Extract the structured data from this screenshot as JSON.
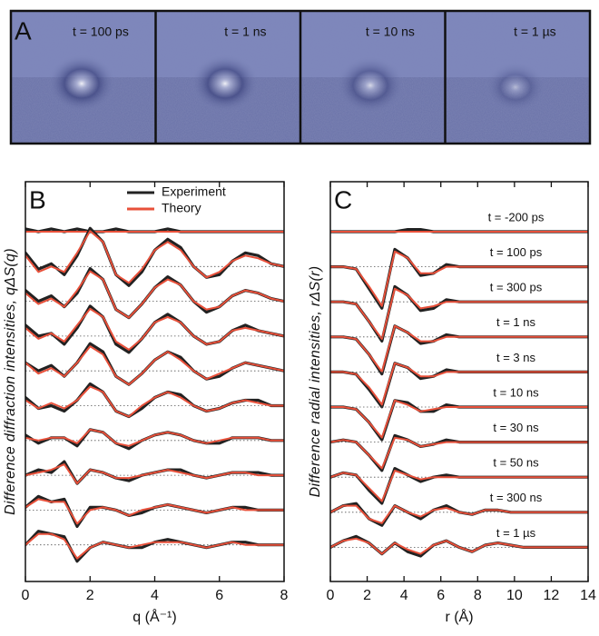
{
  "panel_a": {
    "label": "A",
    "times": [
      "t = 100 ps",
      "t = 1 ns",
      "t = 10 ns",
      "t = 1 µs"
    ]
  },
  "chart_data": [
    {
      "type": "line",
      "panel": "B",
      "xlabel": "q (Å⁻¹)",
      "ylabel": "Difference diffraction intensities, qΔS(q)",
      "xlim": [
        0,
        8
      ],
      "xticks": [
        0,
        2,
        4,
        6,
        8
      ],
      "legend": [
        {
          "name": "Experiment",
          "color": "#222222"
        },
        {
          "name": "Theory",
          "color": "#e8503a"
        }
      ],
      "x": [
        0,
        0.4,
        0.8,
        1.2,
        1.6,
        2.0,
        2.4,
        2.8,
        3.2,
        3.6,
        4.0,
        4.4,
        4.8,
        5.2,
        5.6,
        6.0,
        6.4,
        6.8,
        7.2,
        7.6,
        8.0
      ],
      "traces": [
        {
          "experiment": [
            0.1,
            0,
            0.1,
            0,
            0.1,
            0,
            0,
            0.1,
            0,
            0,
            0,
            0.1,
            0,
            0,
            0,
            0,
            0,
            0,
            0,
            0,
            0
          ],
          "theory": [
            0,
            0,
            0,
            0,
            0,
            0,
            0,
            0,
            0,
            0,
            0,
            0,
            0,
            0,
            0,
            0,
            0,
            0,
            0,
            0,
            0
          ]
        },
        {
          "experiment": [
            0.5,
            -0.1,
            0.1,
            -0.3,
            0.4,
            1.4,
            0.9,
            -0.3,
            -0.7,
            -0.2,
            0.6,
            1.0,
            0.7,
            0,
            -0.4,
            -0.3,
            0.2,
            0.5,
            0.4,
            0.1,
            0
          ],
          "theory": [
            0.4,
            -0.2,
            0,
            -0.2,
            0.5,
            1.3,
            0.9,
            -0.3,
            -0.6,
            -0.1,
            0.6,
            0.9,
            0.6,
            0,
            -0.4,
            -0.2,
            0.2,
            0.4,
            0.3,
            0.1,
            0
          ]
        },
        {
          "experiment": [
            0.4,
            0,
            0.2,
            -0.2,
            0.3,
            1.2,
            0.8,
            -0.3,
            -0.6,
            -0.1,
            0.5,
            0.9,
            0.6,
            0,
            -0.4,
            -0.2,
            0.2,
            0.4,
            0.3,
            0.1,
            0
          ],
          "theory": [
            0.3,
            -0.1,
            0.1,
            -0.2,
            0.4,
            1.1,
            0.8,
            -0.3,
            -0.6,
            -0.1,
            0.5,
            0.8,
            0.6,
            0,
            -0.3,
            -0.2,
            0.2,
            0.4,
            0.3,
            0.1,
            0
          ]
        },
        {
          "experiment": [
            0.4,
            0,
            0.1,
            -0.3,
            0.3,
            1.1,
            0.7,
            -0.3,
            -0.6,
            -0.1,
            0.5,
            0.8,
            0.5,
            0,
            -0.3,
            -0.2,
            0.2,
            0.4,
            0.2,
            0.1,
            0
          ],
          "theory": [
            0.3,
            -0.1,
            0.1,
            -0.2,
            0.4,
            1.0,
            0.7,
            -0.2,
            -0.5,
            -0.1,
            0.5,
            0.7,
            0.5,
            0,
            -0.3,
            -0.2,
            0.2,
            0.3,
            0.2,
            0.1,
            0
          ]
        },
        {
          "experiment": [
            0.3,
            0,
            0.2,
            -0.2,
            0.3,
            1.0,
            0.7,
            -0.2,
            -0.5,
            -0.1,
            0.4,
            0.7,
            0.5,
            0,
            -0.3,
            -0.2,
            0.1,
            0.3,
            0.2,
            0.1,
            0
          ],
          "theory": [
            0.3,
            -0.1,
            0.1,
            -0.2,
            0.3,
            0.9,
            0.6,
            -0.2,
            -0.5,
            -0.1,
            0.4,
            0.7,
            0.4,
            0,
            -0.3,
            -0.1,
            0.1,
            0.3,
            0.2,
            0.1,
            0
          ]
        },
        {
          "experiment": [
            0.3,
            -0.1,
            0,
            -0.2,
            0.2,
            0.8,
            0.5,
            -0.2,
            -0.4,
            -0.1,
            0.3,
            0.5,
            0.4,
            0,
            -0.2,
            -0.1,
            0.1,
            0.2,
            0.2,
            0,
            0
          ],
          "theory": [
            0.2,
            -0.1,
            0.1,
            -0.1,
            0.2,
            0.7,
            0.5,
            -0.2,
            -0.4,
            0,
            0.3,
            0.5,
            0.3,
            0,
            -0.2,
            -0.1,
            0.1,
            0.2,
            0.1,
            0,
            0
          ]
        },
        {
          "experiment": [
            0.2,
            -0.1,
            0.1,
            0.1,
            -0.2,
            0.4,
            0.3,
            -0.1,
            -0.3,
            0,
            0.2,
            0.3,
            0.2,
            0,
            -0.1,
            -0.1,
            0.1,
            0.1,
            0.1,
            0,
            0
          ],
          "theory": [
            0.1,
            0,
            0.1,
            0.1,
            -0.1,
            0.4,
            0.3,
            -0.1,
            -0.2,
            0,
            0.2,
            0.3,
            0.2,
            0,
            -0.1,
            0,
            0.1,
            0.1,
            0.1,
            0,
            0
          ]
        },
        {
          "experiment": [
            0,
            0.2,
            0.1,
            0.5,
            -0.3,
            0.2,
            0.1,
            -0.1,
            -0.2,
            0,
            0.1,
            0.2,
            0.2,
            0,
            -0.1,
            0,
            0.1,
            0.1,
            0.1,
            0,
            0
          ],
          "theory": [
            0,
            0.1,
            0.2,
            0.4,
            -0.3,
            0.2,
            0.1,
            -0.1,
            -0.1,
            0,
            0.1,
            0.2,
            0.1,
            0,
            -0.1,
            0,
            0.1,
            0.1,
            0,
            0,
            0
          ]
        },
        {
          "experiment": [
            0.1,
            0.5,
            0.3,
            0.4,
            -0.6,
            0.1,
            0.1,
            0,
            -0.2,
            -0.1,
            0.1,
            0.2,
            0.1,
            0,
            -0.1,
            0,
            0.1,
            0.1,
            0,
            0,
            0
          ],
          "theory": [
            0.1,
            0.4,
            0.3,
            0.3,
            -0.5,
            0,
            0.1,
            0,
            -0.2,
            0,
            0.1,
            0.2,
            0.1,
            0,
            -0.1,
            0,
            0.1,
            0,
            0,
            0,
            0
          ]
        },
        {
          "experiment": [
            0,
            0.5,
            0.4,
            0.3,
            -0.6,
            -0.1,
            0.1,
            0,
            -0.1,
            -0.1,
            0.1,
            0.2,
            0.1,
            0,
            -0.1,
            0,
            0.1,
            0.1,
            0,
            0,
            0
          ],
          "theory": [
            0,
            0.4,
            0.4,
            0.2,
            -0.5,
            -0.1,
            0.1,
            0,
            -0.1,
            0,
            0.1,
            0.1,
            0.1,
            0,
            -0.1,
            0,
            0.1,
            0,
            0,
            0,
            0
          ]
        }
      ]
    },
    {
      "type": "line",
      "panel": "C",
      "xlabel": "r (Å)",
      "ylabel": "Difference radial intensities, rΔS(r)",
      "xlim": [
        0,
        14
      ],
      "xticks": [
        0,
        2,
        4,
        6,
        8,
        10,
        12,
        14
      ],
      "x": [
        0,
        0.7,
        1.4,
        2.1,
        2.8,
        3.5,
        4.2,
        4.9,
        5.6,
        6.3,
        7.0,
        7.7,
        8.4,
        9.1,
        9.8,
        10.5,
        11.2,
        11.9,
        12.6,
        13.3,
        14.0
      ],
      "traces": [
        {
          "label": "t = -200 ps",
          "experiment": [
            0,
            0,
            0,
            0,
            0,
            0,
            0.1,
            0.1,
            0,
            0,
            0,
            0,
            0,
            0,
            0,
            0,
            0,
            0,
            0,
            0,
            0
          ],
          "theory": [
            0,
            0,
            0,
            0,
            0,
            0,
            0,
            0,
            0,
            0,
            0,
            0,
            0,
            0,
            0,
            0,
            0,
            0,
            0,
            0,
            0
          ]
        },
        {
          "label": "t = 100 ps",
          "experiment": [
            0,
            0,
            -0.1,
            -1.0,
            -1.9,
            0.8,
            0.4,
            -0.4,
            -0.3,
            0.1,
            0,
            0,
            0,
            0,
            0,
            0,
            0,
            0,
            0,
            0,
            0
          ],
          "theory": [
            0,
            0,
            -0.1,
            -0.9,
            -1.8,
            0.7,
            0.4,
            -0.3,
            -0.3,
            0,
            0,
            0,
            0,
            0,
            0,
            0,
            0,
            0,
            0,
            0,
            0
          ]
        },
        {
          "label": "t = 300 ps",
          "experiment": [
            0,
            0,
            -0.1,
            -0.9,
            -1.8,
            0.7,
            0.3,
            -0.4,
            -0.3,
            0.1,
            0,
            0,
            0,
            0,
            0,
            0,
            0,
            0,
            0,
            0,
            0
          ],
          "theory": [
            0,
            0,
            -0.1,
            -0.9,
            -1.7,
            0.6,
            0.3,
            -0.3,
            -0.2,
            0,
            0,
            0,
            0,
            0,
            0,
            0,
            0,
            0,
            0,
            0,
            0
          ]
        },
        {
          "label": "t = 1 ns",
          "experiment": [
            0,
            0,
            -0.1,
            -0.8,
            -1.7,
            0.5,
            0.2,
            -0.3,
            -0.2,
            0.1,
            0,
            0,
            0,
            0,
            0,
            0,
            0,
            0,
            0,
            0,
            0
          ],
          "theory": [
            0,
            0,
            -0.1,
            -0.8,
            -1.6,
            0.5,
            0.2,
            -0.2,
            -0.2,
            0,
            0,
            0,
            0,
            0,
            0,
            0,
            0,
            0,
            0,
            0,
            0
          ]
        },
        {
          "label": "t = 3 ns",
          "experiment": [
            0,
            0,
            -0.1,
            -0.8,
            -1.6,
            0.4,
            0.2,
            -0.3,
            -0.2,
            0.1,
            0,
            0,
            0,
            0,
            0,
            0,
            0,
            0,
            0,
            0,
            0
          ],
          "theory": [
            0,
            0,
            -0.1,
            -0.7,
            -1.5,
            0.4,
            0.2,
            -0.2,
            -0.2,
            0,
            0,
            0,
            0,
            0,
            0,
            0,
            0,
            0,
            0,
            0,
            0
          ]
        },
        {
          "label": "t = 10 ns",
          "experiment": [
            0,
            0,
            -0.1,
            -0.7,
            -1.5,
            0.3,
            0.2,
            -0.2,
            -0.2,
            0.1,
            0,
            0,
            0,
            0,
            0,
            0,
            0,
            0,
            0,
            0,
            0
          ],
          "theory": [
            0,
            0,
            -0.1,
            -0.7,
            -1.4,
            0.3,
            0.1,
            -0.2,
            -0.1,
            0,
            0,
            0,
            0,
            0,
            0,
            0,
            0,
            0,
            0,
            0,
            0
          ]
        },
        {
          "label": "t = 30 ns",
          "experiment": [
            0,
            0.1,
            0,
            -0.6,
            -1.3,
            0.3,
            0.1,
            -0.2,
            -0.1,
            0.1,
            0,
            0,
            0,
            0,
            0,
            0,
            0,
            0,
            0,
            0,
            0
          ],
          "theory": [
            0,
            0.1,
            0,
            -0.6,
            -1.2,
            0.2,
            0.1,
            -0.2,
            -0.1,
            0,
            0,
            0,
            0,
            0,
            0,
            0,
            0,
            0,
            0,
            0,
            0
          ]
        },
        {
          "label": "t = 50 ns",
          "experiment": [
            0,
            0.2,
            0.1,
            -0.6,
            -1.2,
            0.4,
            0.1,
            -0.2,
            0,
            0.1,
            0,
            0,
            0,
            0,
            0,
            0,
            0,
            0,
            0,
            0,
            0
          ],
          "theory": [
            0,
            0.2,
            0.1,
            -0.5,
            -1.1,
            0.3,
            0.1,
            -0.1,
            0,
            0,
            0,
            0,
            0,
            0,
            0,
            0,
            0,
            0,
            0,
            0,
            0
          ]
        },
        {
          "label": "t = 300 ns",
          "experiment": [
            0,
            0.3,
            0.4,
            -0.3,
            -0.6,
            0.3,
            0,
            -0.3,
            0.1,
            0.3,
            0,
            -0.1,
            0.1,
            0.1,
            0,
            0,
            0,
            0,
            0,
            0,
            0
          ],
          "theory": [
            0,
            0.3,
            0.3,
            -0.3,
            -0.5,
            0.3,
            0,
            -0.2,
            0.1,
            0.2,
            0,
            -0.1,
            0.1,
            0.1,
            0,
            0,
            0,
            0,
            0,
            0,
            0
          ]
        },
        {
          "label": "t = 1 µs",
          "experiment": [
            0,
            0.3,
            0.5,
            0.2,
            -0.3,
            0.2,
            -0.2,
            -0.4,
            0.1,
            0.3,
            0,
            -0.2,
            0.1,
            0.2,
            0.1,
            0,
            0,
            0,
            0,
            0,
            0
          ],
          "theory": [
            0,
            0.3,
            0.4,
            0.2,
            -0.3,
            0.2,
            -0.1,
            -0.3,
            0.1,
            0.3,
            0,
            -0.2,
            0.1,
            0.2,
            0.1,
            0,
            0,
            0,
            0,
            0,
            0
          ]
        }
      ]
    }
  ]
}
